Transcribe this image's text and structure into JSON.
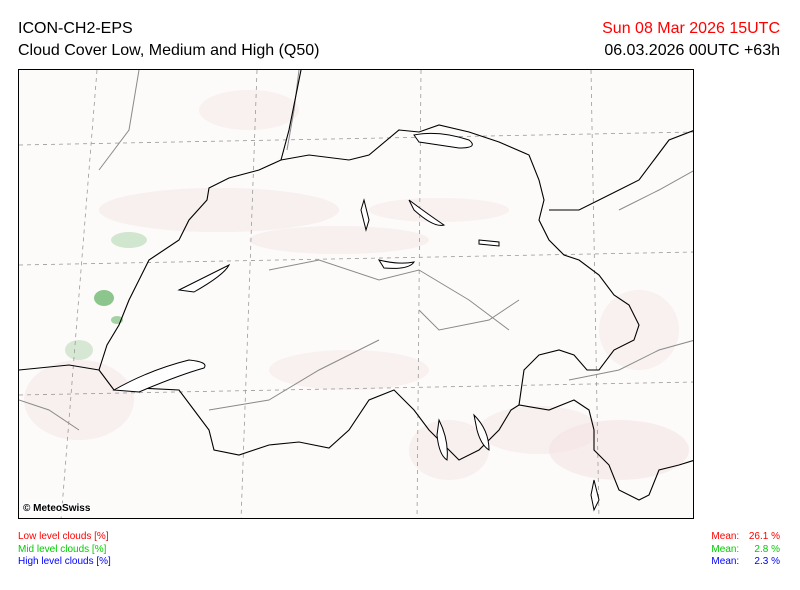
{
  "header": {
    "model": "ICON-CH2-EPS",
    "product": "Cloud Cover Low, Medium and High (Q50)",
    "valid_time": "Sun 08 Mar 2026 15UTC",
    "run_info": "06.03.2026 00UTC +63h"
  },
  "map": {
    "copyright": "© MeteoSwiss"
  },
  "legend": {
    "low": {
      "label": "Low level clouds [%]",
      "mean_label": "Mean:",
      "mean_value": "26.1 %",
      "color": "#ff0000"
    },
    "mid": {
      "label": "Mid level clouds [%]",
      "mean_label": "Mean:",
      "mean_value": "2.8 %",
      "color": "#00cc00"
    },
    "high": {
      "label": "High level clouds [%]",
      "mean_label": "Mean:",
      "mean_value": "2.3 %",
      "color": "#0000ff"
    }
  }
}
